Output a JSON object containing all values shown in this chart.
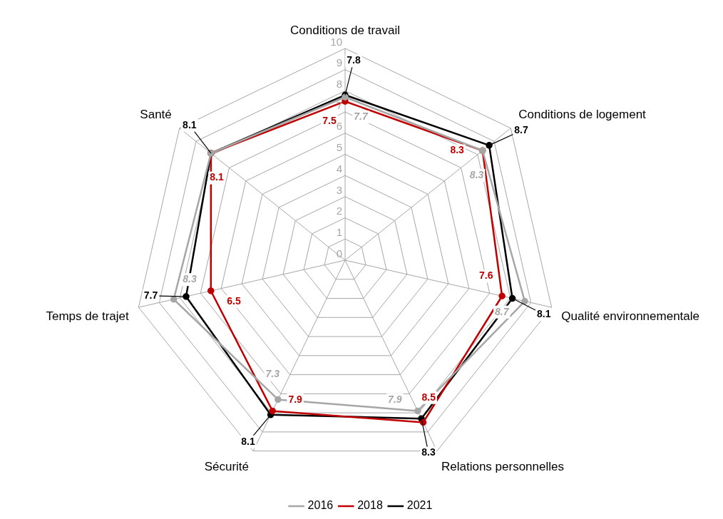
{
  "chart_data": {
    "type": "radar",
    "categories": [
      "Conditions de travail",
      "Conditions de logement",
      "Qualité environnementale",
      "Relations personnelles",
      "Sécurité",
      "Temps de trajet",
      "Santé"
    ],
    "series": [
      {
        "name": "2016",
        "color": "#a6a6a6",
        "values": [
          7.7,
          8.3,
          8.7,
          7.9,
          7.3,
          8.3,
          8.1
        ],
        "value_labels": [
          "7.7",
          "8.3",
          "8.7",
          "7.9",
          "7.3",
          "8.3",
          null
        ]
      },
      {
        "name": "2018",
        "color": "#c00000",
        "values": [
          7.5,
          8.3,
          7.6,
          8.5,
          7.9,
          6.5,
          8.1
        ],
        "value_labels": [
          "7.5",
          "8.3",
          "7.6",
          "8.5",
          "7.9",
          "6.5",
          "8.1"
        ]
      },
      {
        "name": "2021",
        "color": "#000000",
        "values": [
          7.8,
          8.7,
          8.1,
          8.3,
          8.1,
          7.7,
          8.1
        ],
        "value_labels": [
          "7.8",
          "8.7",
          "8.1",
          "8.3",
          "8.1",
          "7.7",
          "8.1"
        ]
      }
    ],
    "ylim": [
      0,
      10
    ],
    "yticks": [
      0,
      1,
      2,
      3,
      4,
      5,
      6,
      7,
      8,
      9,
      10
    ],
    "grid": true,
    "legend": "bottom",
    "marker": "circle",
    "line_style": "solid"
  }
}
